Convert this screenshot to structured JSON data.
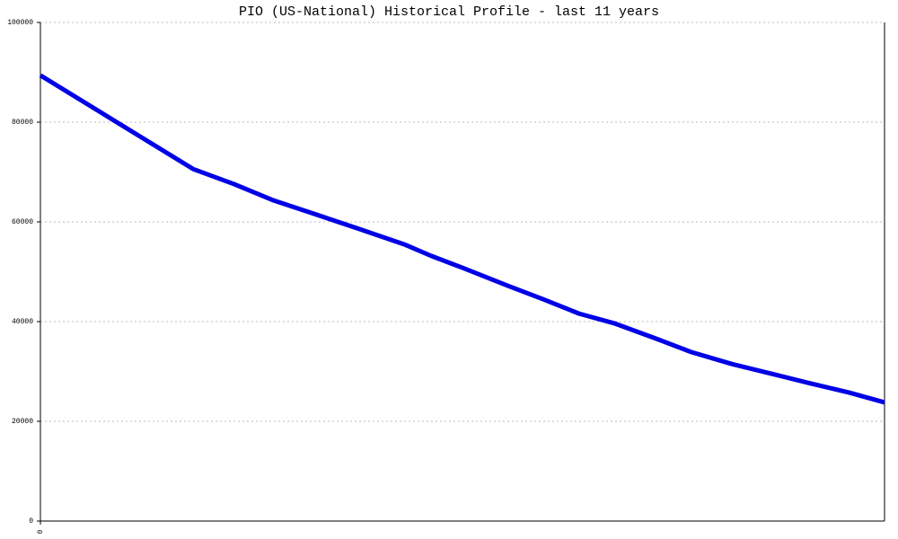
{
  "chart_data": {
    "type": "line",
    "title": "PIO (US-National) Historical Profile - last 11 years",
    "x": [
      0,
      1.99,
      2.52,
      3.04,
      3.57,
      4.15,
      4.74,
      5.09,
      5.5,
      6.09,
      6.55,
      7.02,
      7.49,
      8.02,
      8.48,
      9.01,
      9.54,
      10.01,
      10.53,
      11
    ],
    "series": [
      {
        "color": "#0000e6",
        "values": [
          89400,
          70600,
          67600,
          64300,
          61600,
          58600,
          55500,
          53200,
          50800,
          47200,
          44500,
          41600,
          39600,
          36600,
          33900,
          31500,
          29500,
          27700,
          25800,
          23800
        ]
      }
    ],
    "xlim": [
      0,
      11
    ],
    "xticks": [
      0
    ],
    "ylim": [
      0,
      100000
    ],
    "yticks": [
      0,
      20000,
      40000,
      60000,
      80000,
      100000
    ],
    "grid": true
  }
}
